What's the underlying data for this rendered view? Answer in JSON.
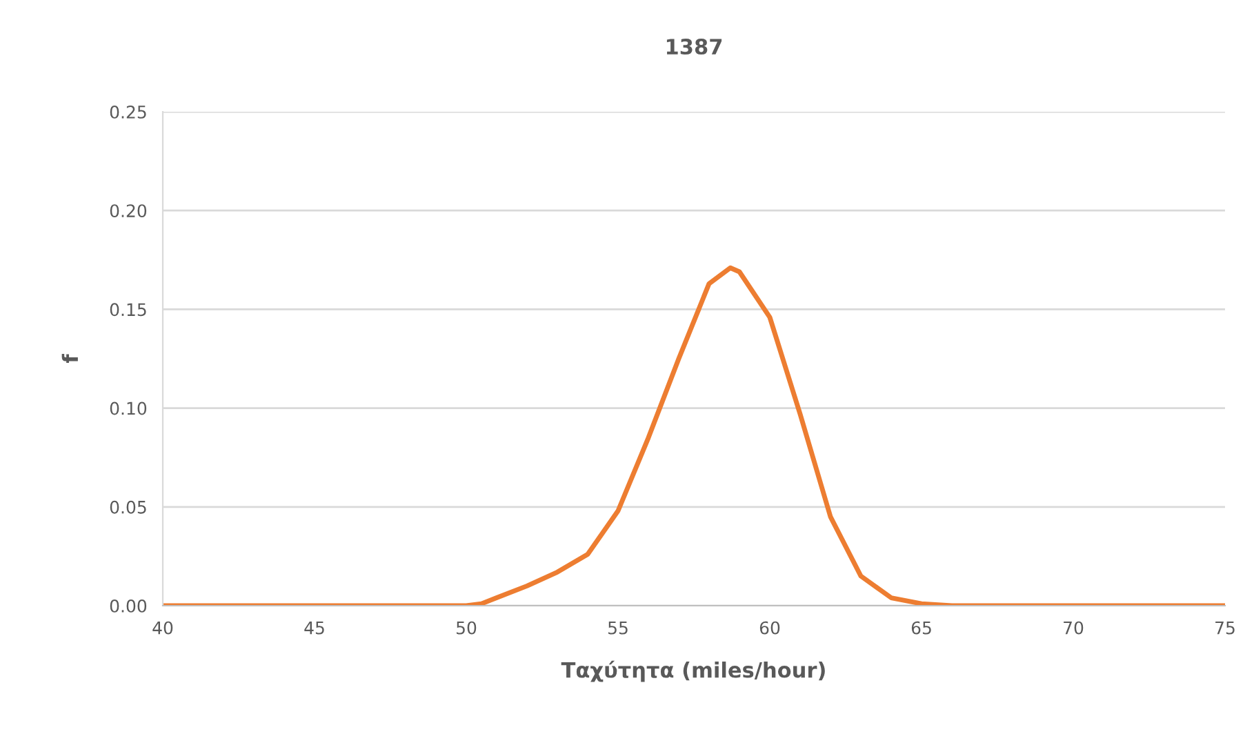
{
  "chart_data": {
    "type": "line",
    "title": "1387",
    "xlabel": "Ταχύτητα (miles/hour)",
    "ylabel": "f",
    "x": [
      40,
      45,
      50,
      50.5,
      51,
      52,
      53,
      54,
      55,
      56,
      57,
      58,
      58.7,
      59,
      60,
      61,
      62,
      63,
      64,
      65,
      66,
      70,
      75
    ],
    "series": [
      {
        "color": "#ed7d31",
        "values": [
          0,
          0,
          0,
          0.001,
          0.004,
          0.01,
          0.017,
          0.026,
          0.048,
          0.085,
          0.125,
          0.163,
          0.171,
          0.169,
          0.146,
          0.097,
          0.045,
          0.015,
          0.004,
          0.001,
          0,
          0,
          0
        ]
      }
    ],
    "xlim": [
      40,
      75
    ],
    "xticks": [
      40,
      45,
      50,
      55,
      60,
      65,
      70,
      75
    ],
    "ylim": [
      0,
      0.25
    ],
    "yticks": [
      {
        "value": 0,
        "label": "0.00"
      },
      {
        "value": 0.05,
        "label": "0.05"
      },
      {
        "value": 0.1,
        "label": "0.10"
      },
      {
        "value": 0.15,
        "label": "0.15"
      },
      {
        "value": 0.2,
        "label": "0.20"
      },
      {
        "value": 0.25,
        "label": "0.25"
      }
    ],
    "grid": "y",
    "legend": false,
    "marker": "none",
    "line_style": "solid"
  }
}
